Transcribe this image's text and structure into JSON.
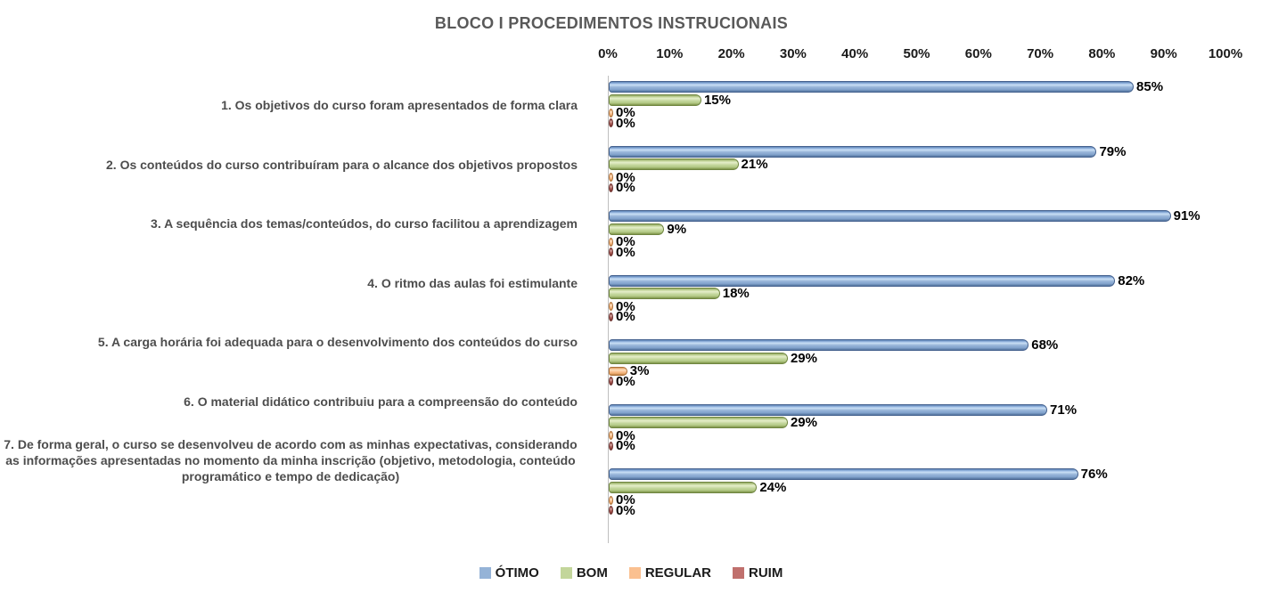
{
  "title": "BLOCO I PROCEDIMENTOS INSTRUCIONAIS",
  "chart_data": {
    "type": "bar",
    "orientation": "horizontal",
    "title": "BLOCO I PROCEDIMENTOS INSTRUCIONAIS",
    "categories": [
      "1. Os objetivos do curso foram apresentados de forma clara",
      "2. Os conteúdos do curso contribuíram para o alcance dos objetivos propostos",
      "3. A sequência dos temas/conteúdos, do curso facilitou a aprendizagem",
      "4. O ritmo das aulas foi estimulante",
      "5. A carga horária foi adequada para o desenvolvimento dos conteúdos do curso",
      "6. O material didático contribuiu para a compreensão do conteúdo",
      "7. De forma geral, o curso se desenvolveu de acordo com as minhas expectativas, considerando as informações apresentadas no momento da minha inscrição (objetivo, metodologia, conteúdo programático e tempo de dedicação)"
    ],
    "series": [
      {
        "name": "ÓTIMO",
        "color": "#95B3D7",
        "values": [
          85,
          79,
          91,
          82,
          68,
          71,
          76
        ]
      },
      {
        "name": "BOM",
        "color": "#C3D69B",
        "values": [
          15,
          21,
          9,
          18,
          29,
          29,
          24
        ]
      },
      {
        "name": "REGULAR",
        "color": "#FAC090",
        "values": [
          0,
          0,
          0,
          0,
          3,
          0,
          0
        ]
      },
      {
        "name": "RUIM",
        "color": "#C0706D",
        "values": [
          0,
          0,
          0,
          0,
          0,
          0,
          0
        ]
      }
    ],
    "x_ticks": [
      "0%",
      "10%",
      "20%",
      "30%",
      "40%",
      "50%",
      "60%",
      "70%",
      "80%",
      "90%",
      "100%"
    ],
    "xlim": [
      0,
      100
    ],
    "value_suffix": "%",
    "data_labels": true,
    "grid": false,
    "legend_position": "bottom"
  }
}
